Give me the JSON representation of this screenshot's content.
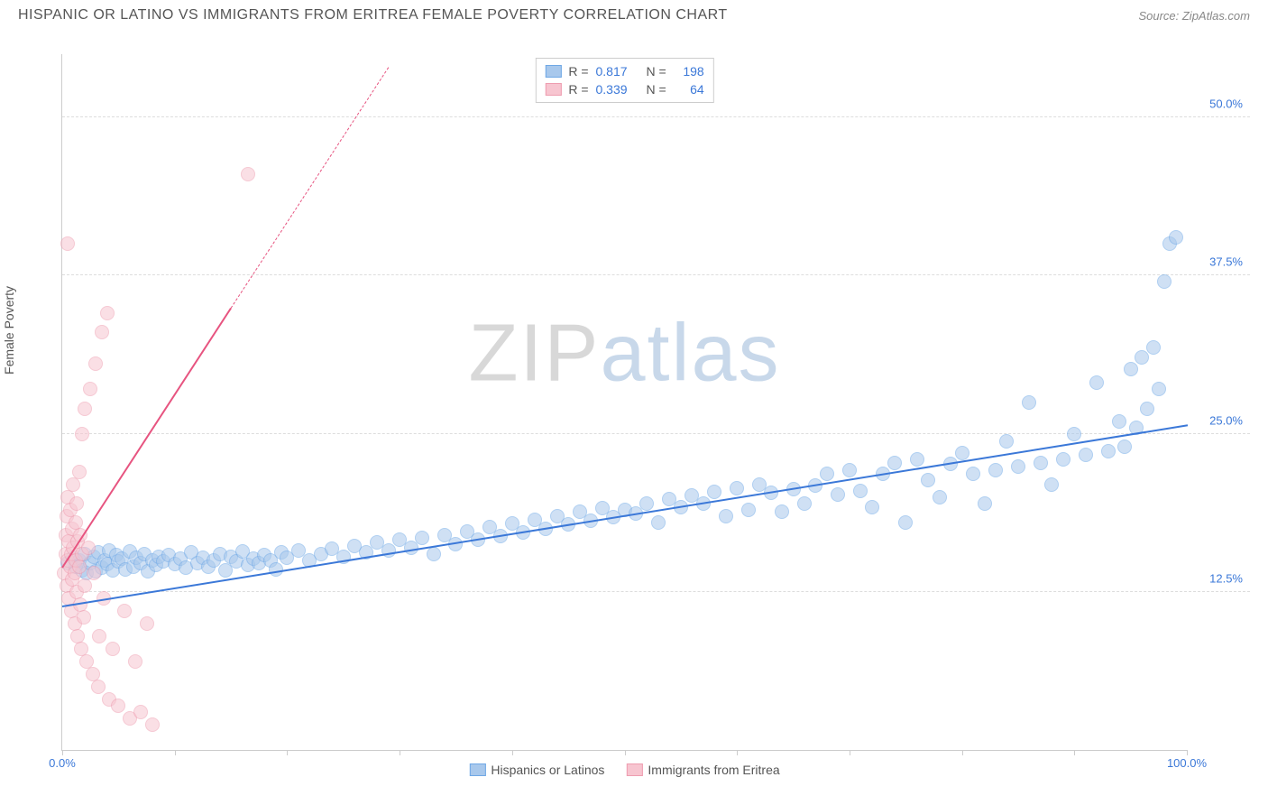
{
  "header": {
    "title": "HISPANIC OR LATINO VS IMMIGRANTS FROM ERITREA FEMALE POVERTY CORRELATION CHART",
    "source_prefix": "Source: ",
    "source_name": "ZipAtlas.com"
  },
  "watermark": {
    "part1": "ZIP",
    "part2": "atlas"
  },
  "chart": {
    "type": "scatter",
    "ylabel": "Female Poverty",
    "background_color": "#ffffff",
    "grid_color": "#dddddd",
    "axis_color": "#cccccc",
    "xlim": [
      0,
      100
    ],
    "ylim": [
      0,
      55
    ],
    "x_tick_positions": [
      0,
      10,
      20,
      30,
      40,
      50,
      60,
      70,
      80,
      90,
      100
    ],
    "x_tick_labels": {
      "0": "0.0%",
      "100": "100.0%"
    },
    "y_grid": [
      {
        "y": 12.5,
        "label": "12.5%"
      },
      {
        "y": 25.0,
        "label": "25.0%"
      },
      {
        "y": 37.5,
        "label": "37.5%"
      },
      {
        "y": 50.0,
        "label": "50.0%"
      }
    ],
    "tick_label_color": "#3b78d8",
    "point_radius": 8,
    "point_opacity": 0.55,
    "series": [
      {
        "name": "Hispanics or Latinos",
        "fill": "#a8c8ec",
        "stroke": "#6fa8e6",
        "trend_color": "#3b78d8",
        "R": "0.817",
        "N": "198",
        "trend": {
          "x1": 0,
          "y1": 11.5,
          "x2": 100,
          "y2": 25.8
        },
        "points": [
          [
            0.5,
            14.8
          ],
          [
            1,
            15.2
          ],
          [
            1.2,
            14.5
          ],
          [
            1.5,
            15.0
          ],
          [
            1.8,
            14.2
          ],
          [
            2,
            15.5
          ],
          [
            2.2,
            14.0
          ],
          [
            2.5,
            14.8
          ],
          [
            2.8,
            15.3
          ],
          [
            3,
            14.1
          ],
          [
            3.2,
            15.6
          ],
          [
            3.5,
            14.4
          ],
          [
            3.8,
            15.0
          ],
          [
            4,
            14.7
          ],
          [
            4.2,
            15.8
          ],
          [
            4.5,
            14.2
          ],
          [
            4.8,
            15.4
          ],
          [
            5,
            14.9
          ],
          [
            5.3,
            15.1
          ],
          [
            5.6,
            14.3
          ],
          [
            6,
            15.7
          ],
          [
            6.3,
            14.5
          ],
          [
            6.6,
            15.2
          ],
          [
            7,
            14.8
          ],
          [
            7.3,
            15.5
          ],
          [
            7.6,
            14.1
          ],
          [
            8,
            15.0
          ],
          [
            8.3,
            14.6
          ],
          [
            8.6,
            15.3
          ],
          [
            9,
            14.9
          ],
          [
            9.5,
            15.4
          ],
          [
            10,
            14.7
          ],
          [
            10.5,
            15.1
          ],
          [
            11,
            14.4
          ],
          [
            11.5,
            15.6
          ],
          [
            12,
            14.8
          ],
          [
            12.5,
            15.2
          ],
          [
            13,
            14.5
          ],
          [
            13.5,
            15.0
          ],
          [
            14,
            15.5
          ],
          [
            14.5,
            14.2
          ],
          [
            15,
            15.3
          ],
          [
            15.5,
            14.9
          ],
          [
            16,
            15.7
          ],
          [
            16.5,
            14.6
          ],
          [
            17,
            15.1
          ],
          [
            17.5,
            14.8
          ],
          [
            18,
            15.4
          ],
          [
            18.5,
            15.0
          ],
          [
            19,
            14.3
          ],
          [
            19.5,
            15.6
          ],
          [
            20,
            15.2
          ],
          [
            21,
            15.8
          ],
          [
            22,
            15.0
          ],
          [
            23,
            15.5
          ],
          [
            24,
            15.9
          ],
          [
            25,
            15.3
          ],
          [
            26,
            16.1
          ],
          [
            27,
            15.6
          ],
          [
            28,
            16.4
          ],
          [
            29,
            15.8
          ],
          [
            30,
            16.6
          ],
          [
            31,
            16.0
          ],
          [
            32,
            16.8
          ],
          [
            33,
            15.5
          ],
          [
            34,
            17.0
          ],
          [
            35,
            16.3
          ],
          [
            36,
            17.3
          ],
          [
            37,
            16.6
          ],
          [
            38,
            17.6
          ],
          [
            39,
            16.9
          ],
          [
            40,
            17.9
          ],
          [
            41,
            17.2
          ],
          [
            42,
            18.2
          ],
          [
            43,
            17.5
          ],
          [
            44,
            18.5
          ],
          [
            45,
            17.8
          ],
          [
            46,
            18.8
          ],
          [
            47,
            18.1
          ],
          [
            48,
            19.1
          ],
          [
            49,
            18.4
          ],
          [
            50,
            19.0
          ],
          [
            51,
            18.7
          ],
          [
            52,
            19.5
          ],
          [
            53,
            18.0
          ],
          [
            54,
            19.8
          ],
          [
            55,
            19.2
          ],
          [
            56,
            20.1
          ],
          [
            57,
            19.5
          ],
          [
            58,
            20.4
          ],
          [
            59,
            18.5
          ],
          [
            60,
            20.7
          ],
          [
            61,
            19.0
          ],
          [
            62,
            21.0
          ],
          [
            63,
            20.3
          ],
          [
            64,
            18.8
          ],
          [
            65,
            20.6
          ],
          [
            66,
            19.5
          ],
          [
            67,
            20.9
          ],
          [
            68,
            21.8
          ],
          [
            69,
            20.2
          ],
          [
            70,
            22.1
          ],
          [
            71,
            20.5
          ],
          [
            72,
            19.2
          ],
          [
            73,
            21.8
          ],
          [
            74,
            22.7
          ],
          [
            75,
            18.0
          ],
          [
            76,
            23.0
          ],
          [
            77,
            21.3
          ],
          [
            78,
            20.0
          ],
          [
            79,
            22.6
          ],
          [
            80,
            23.5
          ],
          [
            81,
            21.8
          ],
          [
            82,
            19.5
          ],
          [
            83,
            22.1
          ],
          [
            84,
            24.4
          ],
          [
            85,
            22.4
          ],
          [
            86,
            27.5
          ],
          [
            87,
            22.7
          ],
          [
            88,
            21.0
          ],
          [
            89,
            23.0
          ],
          [
            90,
            25.0
          ],
          [
            91,
            23.3
          ],
          [
            92,
            29.0
          ],
          [
            93,
            23.6
          ],
          [
            94,
            26.0
          ],
          [
            94.5,
            24.0
          ],
          [
            95,
            30.1
          ],
          [
            95.5,
            25.5
          ],
          [
            96,
            31.0
          ],
          [
            96.5,
            27.0
          ],
          [
            97,
            31.8
          ],
          [
            97.5,
            28.5
          ],
          [
            98,
            37.0
          ],
          [
            98.5,
            40.0
          ],
          [
            99,
            40.5
          ]
        ]
      },
      {
        "name": "Immigrants from Eritrea",
        "fill": "#f7c5d0",
        "stroke": "#ee9db0",
        "trend_color": "#e75480",
        "R": "0.339",
        "N": "64",
        "trend": {
          "x1": 0,
          "y1": 14.5,
          "x2": 15,
          "y2": 35.0
        },
        "trend_dash": {
          "x1": 15,
          "y1": 35.0,
          "x2": 29,
          "y2": 54.0
        },
        "points": [
          [
            0.2,
            14.0
          ],
          [
            0.3,
            15.5
          ],
          [
            0.3,
            17.0
          ],
          [
            0.4,
            13.0
          ],
          [
            0.4,
            18.5
          ],
          [
            0.5,
            15.0
          ],
          [
            0.5,
            20.0
          ],
          [
            0.6,
            12.0
          ],
          [
            0.6,
            16.5
          ],
          [
            0.7,
            14.5
          ],
          [
            0.7,
            19.0
          ],
          [
            0.8,
            15.5
          ],
          [
            0.8,
            11.0
          ],
          [
            0.9,
            17.5
          ],
          [
            0.9,
            13.5
          ],
          [
            1.0,
            16.0
          ],
          [
            1.0,
            21.0
          ],
          [
            1.1,
            14.0
          ],
          [
            1.1,
            10.0
          ],
          [
            1.2,
            18.0
          ],
          [
            1.2,
            15.0
          ],
          [
            1.3,
            12.5
          ],
          [
            1.3,
            19.5
          ],
          [
            1.4,
            16.5
          ],
          [
            1.4,
            9.0
          ],
          [
            1.5,
            14.5
          ],
          [
            1.5,
            22.0
          ],
          [
            1.6,
            11.5
          ],
          [
            1.6,
            17.0
          ],
          [
            1.7,
            8.0
          ],
          [
            1.8,
            15.5
          ],
          [
            1.8,
            25.0
          ],
          [
            1.9,
            10.5
          ],
          [
            2.0,
            13.0
          ],
          [
            2.0,
            27.0
          ],
          [
            2.2,
            7.0
          ],
          [
            2.3,
            16.0
          ],
          [
            2.5,
            28.5
          ],
          [
            2.7,
            6.0
          ],
          [
            2.8,
            14.0
          ],
          [
            3.0,
            30.5
          ],
          [
            3.2,
            5.0
          ],
          [
            3.3,
            9.0
          ],
          [
            3.5,
            33.0
          ],
          [
            3.7,
            12.0
          ],
          [
            4.0,
            34.5
          ],
          [
            4.2,
            4.0
          ],
          [
            4.5,
            8.0
          ],
          [
            5.0,
            3.5
          ],
          [
            5.5,
            11.0
          ],
          [
            6.0,
            2.5
          ],
          [
            6.5,
            7.0
          ],
          [
            7.0,
            3.0
          ],
          [
            7.5,
            10.0
          ],
          [
            8.0,
            2.0
          ],
          [
            0.5,
            40.0
          ],
          [
            16.5,
            45.5
          ]
        ]
      }
    ],
    "legend_labels": {
      "R": "R =",
      "N": "N ="
    }
  }
}
